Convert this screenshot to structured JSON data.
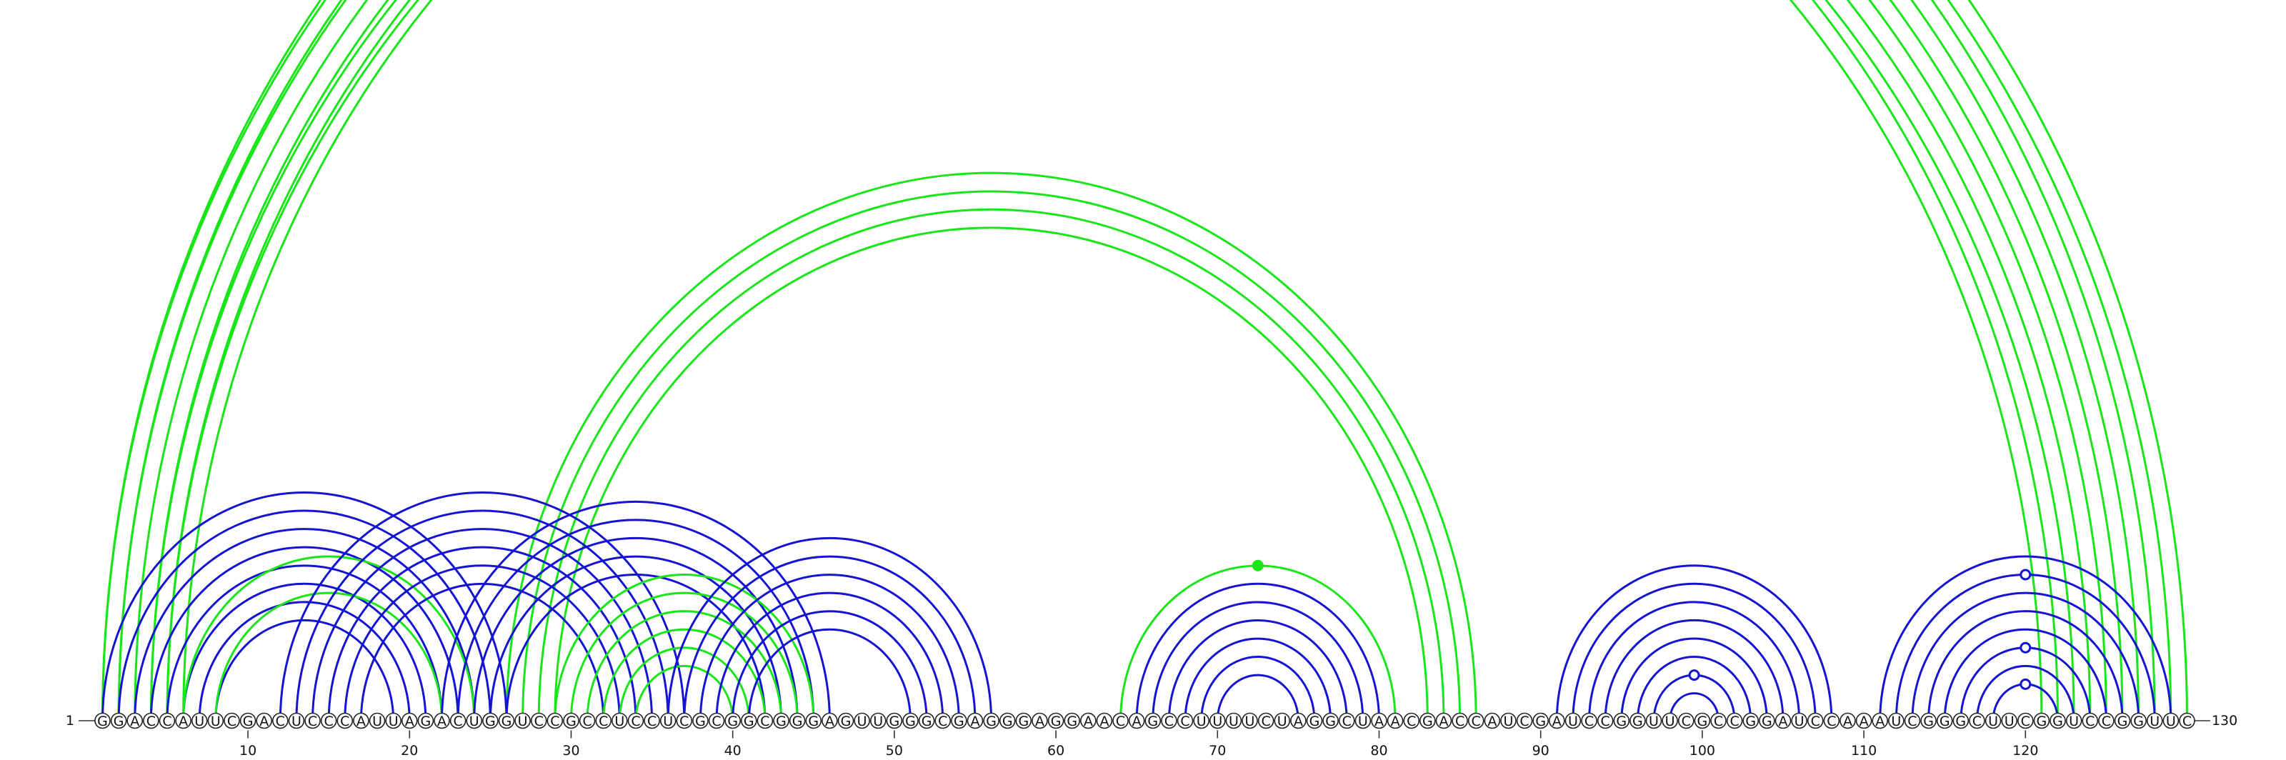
{
  "sequence": "GGACCAUUCGACUCCCAUUAGACUGGUCCGCCUCCUCGCGGCGGGAGUUGGGCGAGGGAGGAACAGCCUUUUCUAGGCUAACGACCAUCGAUCCGGUUCGCCGGAUCCAAAUCGGGCUUCGGUCCGGUUC",
  "start_label": "1",
  "end_label": "130",
  "ticks": [
    "10",
    "20",
    "30",
    "40",
    "50",
    "60",
    "70",
    "80",
    "90",
    "100",
    "110",
    "120"
  ],
  "colors": {
    "green": "#19e619",
    "blue": "#1414d2"
  },
  "arcs": [
    {
      "i": 1,
      "j": 130,
      "color": "green"
    },
    {
      "i": 2,
      "j": 129,
      "color": "green"
    },
    {
      "i": 1,
      "j": 128,
      "color": "green"
    },
    {
      "i": 2,
      "j": 127,
      "color": "green"
    },
    {
      "i": 3,
      "j": 126,
      "color": "green"
    },
    {
      "i": 4,
      "j": 125,
      "color": "green"
    },
    {
      "i": 5,
      "j": 124,
      "color": "green"
    },
    {
      "i": 6,
      "j": 123,
      "color": "green"
    },
    {
      "i": 4,
      "j": 122,
      "color": "green"
    },
    {
      "i": 5,
      "j": 121,
      "color": "green"
    },
    {
      "i": 26,
      "j": 86,
      "color": "green"
    },
    {
      "i": 27,
      "j": 85,
      "color": "green"
    },
    {
      "i": 28,
      "j": 84,
      "color": "green"
    },
    {
      "i": 29,
      "j": 83,
      "color": "green"
    },
    {
      "i": 1,
      "j": 26,
      "color": "blue"
    },
    {
      "i": 2,
      "j": 25,
      "color": "blue"
    },
    {
      "i": 3,
      "j": 24,
      "color": "blue"
    },
    {
      "i": 4,
      "j": 23,
      "color": "blue"
    },
    {
      "i": 5,
      "j": 22,
      "color": "blue"
    },
    {
      "i": 6,
      "j": 21,
      "color": "blue"
    },
    {
      "i": 7,
      "j": 20,
      "color": "blue"
    },
    {
      "i": 8,
      "j": 19,
      "color": "blue"
    },
    {
      "i": 6,
      "j": 24,
      "color": "green"
    },
    {
      "i": 8,
      "j": 22,
      "color": "green"
    },
    {
      "i": 12,
      "j": 37,
      "color": "blue"
    },
    {
      "i": 13,
      "j": 36,
      "color": "blue"
    },
    {
      "i": 14,
      "j": 35,
      "color": "blue"
    },
    {
      "i": 15,
      "j": 34,
      "color": "blue"
    },
    {
      "i": 16,
      "j": 33,
      "color": "blue"
    },
    {
      "i": 17,
      "j": 32,
      "color": "blue"
    },
    {
      "i": 22,
      "j": 46,
      "color": "blue"
    },
    {
      "i": 23,
      "j": 45,
      "color": "blue"
    },
    {
      "i": 24,
      "j": 44,
      "color": "blue"
    },
    {
      "i": 25,
      "j": 43,
      "color": "blue"
    },
    {
      "i": 26,
      "j": 42,
      "color": "blue"
    },
    {
      "i": 29,
      "j": 45,
      "color": "green"
    },
    {
      "i": 30,
      "j": 44,
      "color": "green"
    },
    {
      "i": 31,
      "j": 43,
      "color": "green"
    },
    {
      "i": 32,
      "j": 42,
      "color": "green"
    },
    {
      "i": 33,
      "j": 41,
      "color": "green"
    },
    {
      "i": 34,
      "j": 40,
      "color": "green"
    },
    {
      "i": 36,
      "j": 56,
      "color": "blue"
    },
    {
      "i": 37,
      "j": 55,
      "color": "blue"
    },
    {
      "i": 38,
      "j": 54,
      "color": "blue"
    },
    {
      "i": 39,
      "j": 53,
      "color": "blue"
    },
    {
      "i": 40,
      "j": 52,
      "color": "blue"
    },
    {
      "i": 41,
      "j": 51,
      "color": "blue"
    },
    {
      "i": 64,
      "j": 81,
      "color": "green"
    },
    {
      "i": 65,
      "j": 80,
      "color": "blue"
    },
    {
      "i": 66,
      "j": 79,
      "color": "blue"
    },
    {
      "i": 67,
      "j": 78,
      "color": "blue"
    },
    {
      "i": 68,
      "j": 77,
      "color": "blue"
    },
    {
      "i": 69,
      "j": 76,
      "color": "blue"
    },
    {
      "i": 70,
      "j": 75,
      "color": "blue"
    },
    {
      "i": 91,
      "j": 108,
      "color": "blue"
    },
    {
      "i": 92,
      "j": 107,
      "color": "blue"
    },
    {
      "i": 93,
      "j": 106,
      "color": "blue"
    },
    {
      "i": 94,
      "j": 105,
      "color": "blue"
    },
    {
      "i": 95,
      "j": 104,
      "color": "blue"
    },
    {
      "i": 96,
      "j": 103,
      "color": "blue"
    },
    {
      "i": 97,
      "j": 102,
      "color": "blue"
    },
    {
      "i": 98,
      "j": 101,
      "color": "blue"
    },
    {
      "i": 111,
      "j": 129,
      "color": "blue"
    },
    {
      "i": 112,
      "j": 128,
      "color": "blue"
    },
    {
      "i": 113,
      "j": 127,
      "color": "blue"
    },
    {
      "i": 114,
      "j": 126,
      "color": "blue"
    },
    {
      "i": 115,
      "j": 125,
      "color": "blue"
    },
    {
      "i": 116,
      "j": 124,
      "color": "blue"
    },
    {
      "i": 117,
      "j": 123,
      "color": "blue"
    },
    {
      "i": 118,
      "j": 122,
      "color": "blue"
    }
  ],
  "markers": [
    {
      "i": 1,
      "j": 130,
      "color": "green",
      "style": "open"
    },
    {
      "i": 64,
      "j": 81,
      "color": "green",
      "style": "filled"
    },
    {
      "i": 97,
      "j": 102,
      "color": "blue",
      "style": "open"
    },
    {
      "i": 112,
      "j": 128,
      "color": "blue",
      "style": "open"
    },
    {
      "i": 116,
      "j": 124,
      "color": "blue",
      "style": "open"
    },
    {
      "i": 118,
      "j": 122,
      "color": "blue",
      "style": "open"
    }
  ]
}
